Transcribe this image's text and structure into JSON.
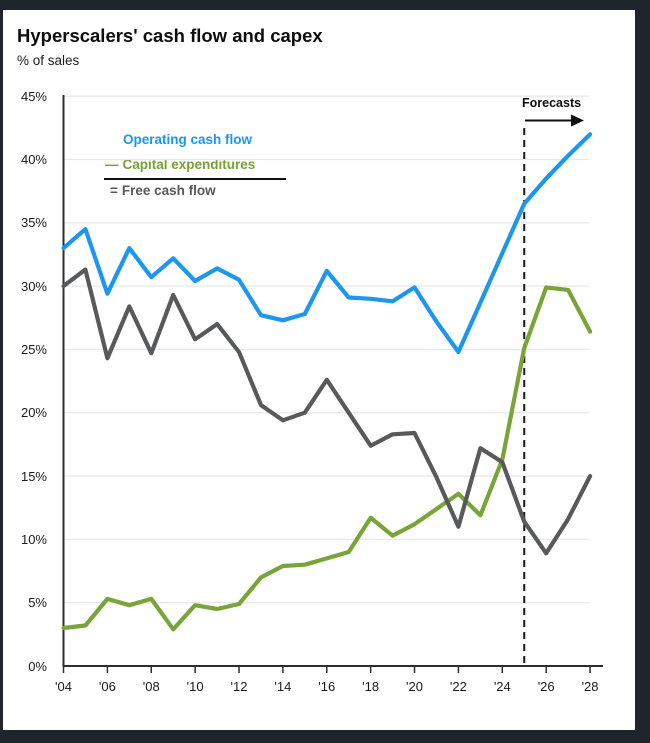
{
  "frame": {
    "background_color": "#20242d",
    "card_color": "#ffffff"
  },
  "header": {
    "title": "Hyperscalers' cash flow and capex",
    "subtitle": "% of sales"
  },
  "legend": {
    "items": [
      {
        "prefix": "",
        "label": "Operating cash flow",
        "color": "#1d96f0"
      },
      {
        "prefix": "—",
        "label": "Capital expenditures",
        "color": "#76a333"
      },
      {
        "prefix": "=",
        "label": "Free cash flow",
        "color": "#58595b"
      }
    ]
  },
  "forecast": {
    "label": "Forecasts"
  },
  "chart_data": {
    "type": "line",
    "title": "Hyperscalers' cash flow and capex",
    "xlabel": "",
    "ylabel": "% of sales",
    "ylim": [
      0,
      45
    ],
    "ytick_step": 5,
    "ytick_labels": [
      "0%",
      "5%",
      "10%",
      "15%",
      "20%",
      "25%",
      "30%",
      "35%",
      "40%",
      "45%"
    ],
    "xtick_years": [
      2004,
      2006,
      2008,
      2010,
      2012,
      2014,
      2016,
      2018,
      2020,
      2022,
      2024,
      2026,
      2028
    ],
    "xtick_labels": [
      "'04",
      "'06",
      "'08",
      "'10",
      "'12",
      "'14",
      "'16",
      "'18",
      "'20",
      "'22",
      "'24",
      "'26",
      "'28"
    ],
    "grid": true,
    "forecast_start_year": 2025,
    "x": [
      2004,
      2005,
      2006,
      2007,
      2008,
      2009,
      2010,
      2011,
      2012,
      2013,
      2014,
      2015,
      2016,
      2017,
      2018,
      2019,
      2020,
      2021,
      2022,
      2023,
      2024,
      2025,
      2026,
      2027,
      2028
    ],
    "series": [
      {
        "name": "Operating cash flow",
        "color": "#1d96f0",
        "values": [
          33.0,
          34.5,
          29.4,
          33.0,
          30.7,
          32.2,
          30.4,
          31.4,
          30.5,
          27.7,
          27.3,
          27.8,
          31.2,
          29.1,
          29.0,
          28.8,
          29.9,
          27.2,
          24.8,
          28.7,
          32.6,
          36.5,
          38.5,
          40.3,
          42.0
        ]
      },
      {
        "name": "Capital expenditures",
        "color": "#79a437",
        "values": [
          3.0,
          3.2,
          5.3,
          4.8,
          5.3,
          2.9,
          4.8,
          4.5,
          4.9,
          7.0,
          7.9,
          8.0,
          8.5,
          9.0,
          11.7,
          10.3,
          11.2,
          12.4,
          13.6,
          11.9,
          16.3,
          25.1,
          29.9,
          29.7,
          26.4
        ]
      },
      {
        "name": "Free cash flow",
        "color": "#58595b",
        "values": [
          30.0,
          31.3,
          24.3,
          28.4,
          24.7,
          29.3,
          25.8,
          27.0,
          24.8,
          20.6,
          19.4,
          20.0,
          22.6,
          20.0,
          17.4,
          18.3,
          18.4,
          14.9,
          11.0,
          17.2,
          16.1,
          11.4,
          8.9,
          11.6,
          15.0
        ]
      }
    ]
  }
}
